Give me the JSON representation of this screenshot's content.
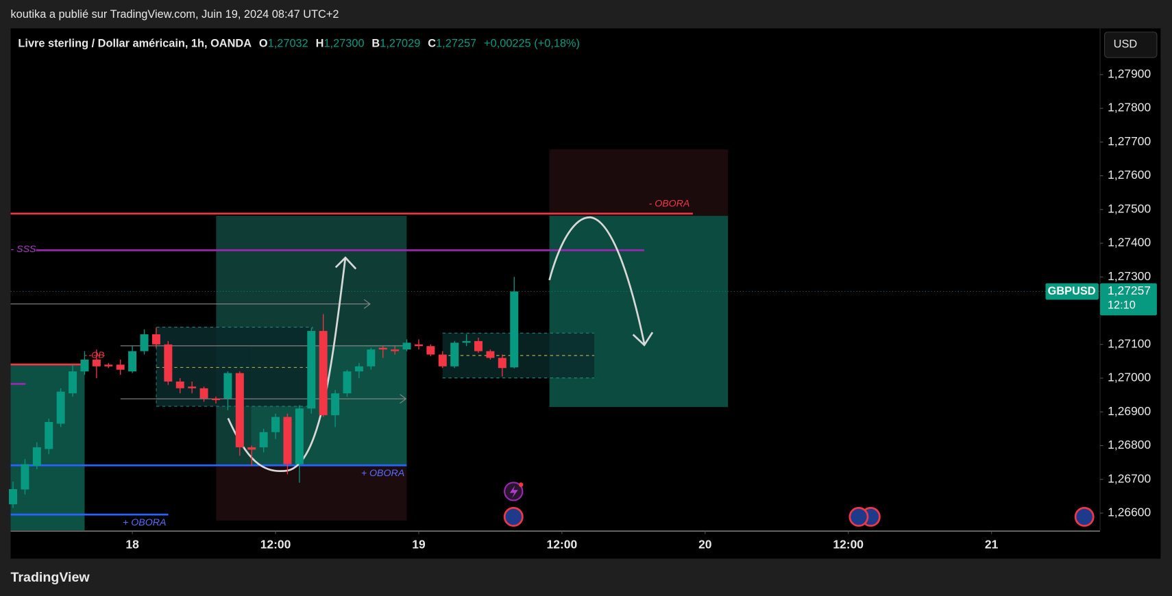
{
  "header": {
    "publisher": "koutika a publié sur TradingView.com, Juin 19, 2024 08:47 UTC+2"
  },
  "legend": {
    "symbol": "Livre sterling / Dollar américain, 1h, OANDA",
    "ohlc": [
      {
        "key": "O",
        "value": "1,27032"
      },
      {
        "key": "H",
        "value": "1,27300"
      },
      {
        "key": "B",
        "value": "1,27029"
      },
      {
        "key": "C",
        "value": "1,27257"
      }
    ],
    "change": "+0,00225 (+0,18%)"
  },
  "currency_button": "USD",
  "chart_data": {
    "type": "candlestick",
    "x": [
      -10,
      -9,
      -8,
      -7,
      -6,
      -5,
      -4,
      -3,
      -2,
      -1,
      0,
      1,
      2,
      3,
      4,
      5,
      6,
      7,
      8,
      9,
      10,
      11,
      12,
      13,
      14,
      15,
      16,
      17,
      18,
      19,
      20,
      21,
      22,
      23,
      24,
      25,
      26,
      27,
      28,
      29,
      30,
      31,
      32
    ],
    "xlim": [
      -10.2,
      81.1
    ],
    "xticks": [
      {
        "value": 0,
        "label": "18"
      },
      {
        "value": 12,
        "label": "12:00"
      },
      {
        "value": 24,
        "label": "19"
      },
      {
        "value": 36,
        "label": "12:00"
      },
      {
        "value": 48,
        "label": "20"
      },
      {
        "value": 60,
        "label": "12:00"
      },
      {
        "value": 72,
        "label": "21"
      }
    ],
    "ylim": [
      1.26549,
      1.28037
    ],
    "yticks": [
      {
        "value": 1.266,
        "label": "1,26600"
      },
      {
        "value": 1.267,
        "label": "1,26700"
      },
      {
        "value": 1.268,
        "label": "1,26800"
      },
      {
        "value": 1.269,
        "label": "1,26900"
      },
      {
        "value": 1.27,
        "label": "1,27000"
      },
      {
        "value": 1.271,
        "label": "1,27100"
      },
      {
        "value": 1.272,
        "label": "1,27200"
      },
      {
        "value": 1.273,
        "label": "1,27300"
      },
      {
        "value": 1.274,
        "label": "1,27400"
      },
      {
        "value": 1.275,
        "label": "1,27500"
      },
      {
        "value": 1.276,
        "label": "1,27600"
      },
      {
        "value": 1.277,
        "label": "1,27700"
      },
      {
        "value": 1.278,
        "label": "1,27800"
      },
      {
        "value": 1.279,
        "label": "1,27900"
      }
    ],
    "series": [
      {
        "name": "GBPUSD",
        "up_color": "#089981",
        "down_color": "#f23645",
        "open": [
          1.26626,
          1.2667,
          1.2674,
          1.2679,
          1.26865,
          1.26955,
          1.2702,
          1.27055,
          1.2704,
          1.2704,
          1.2702,
          1.2708,
          1.2713,
          1.271,
          1.2699,
          1.26975,
          1.2697,
          1.2694,
          1.2694,
          1.27015,
          1.26795,
          1.26795,
          1.2684,
          1.26885,
          1.26745,
          1.2691,
          1.2714,
          1.2689,
          1.26955,
          1.2702,
          1.27035,
          1.2709,
          1.27085,
          1.27085,
          1.271,
          1.27095,
          1.2707,
          1.27035,
          1.27105,
          1.2711,
          1.2708,
          1.2706,
          1.27032
        ],
        "high": [
          1.26693,
          1.2676,
          1.2681,
          1.2688,
          1.2697,
          1.2704,
          1.2708,
          1.27085,
          1.27045,
          1.27055,
          1.27095,
          1.27145,
          1.2715,
          1.2711,
          1.27,
          1.2699,
          1.26975,
          1.26945,
          1.2702,
          1.2702,
          1.268,
          1.2685,
          1.26895,
          1.26895,
          1.2692,
          1.2715,
          1.2719,
          1.26965,
          1.27025,
          1.27045,
          1.2709,
          1.27095,
          1.27095,
          1.27115,
          1.27115,
          1.271,
          1.2708,
          1.2711,
          1.2713,
          1.2712,
          1.27085,
          1.2707,
          1.273
        ],
        "low": [
          1.26615,
          1.26655,
          1.2673,
          1.26775,
          1.26855,
          1.26945,
          1.2701,
          1.27,
          1.2703,
          1.2701,
          1.27015,
          1.2707,
          1.2709,
          1.2698,
          1.26955,
          1.26955,
          1.2693,
          1.26925,
          1.26905,
          1.2677,
          1.2674,
          1.2678,
          1.2682,
          1.26715,
          1.2669,
          1.26895,
          1.26885,
          1.26855,
          1.26945,
          1.27,
          1.27025,
          1.2706,
          1.2707,
          1.2708,
          1.27085,
          1.27065,
          1.2703,
          1.2703,
          1.27095,
          1.27075,
          1.27055,
          1.27005,
          1.27029
        ],
        "close": [
          1.26671,
          1.26745,
          1.26795,
          1.2687,
          1.2696,
          1.2702,
          1.27055,
          1.27035,
          1.27035,
          1.27025,
          1.2708,
          1.2713,
          1.271,
          1.2699,
          1.2697,
          1.2697,
          1.2694,
          1.26935,
          1.27015,
          1.26795,
          1.26788,
          1.2684,
          1.26885,
          1.26745,
          1.2691,
          1.2714,
          1.2689,
          1.26955,
          1.2702,
          1.27035,
          1.27085,
          1.27085,
          1.2708,
          1.27105,
          1.27095,
          1.2707,
          1.27035,
          1.27105,
          1.2711,
          1.2708,
          1.2706,
          1.2703,
          1.27257
        ]
      }
    ],
    "price_tag": {
      "value": 1.27257,
      "label": "1,27257"
    },
    "countdown": "12:10",
    "annotations": [
      "- OBORA",
      "- SSS",
      "OB",
      "+ OBORA",
      "+ OBORA"
    ]
  },
  "footer": {
    "brand": "TradingView"
  }
}
